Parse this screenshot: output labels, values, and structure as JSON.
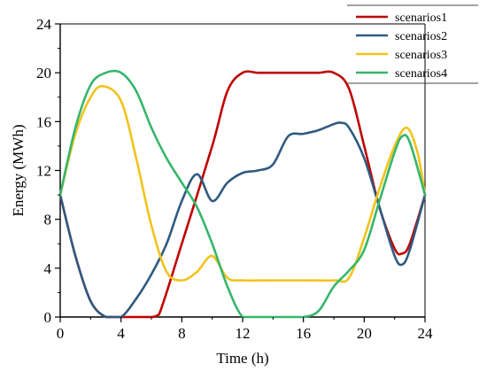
{
  "chart_data": {
    "type": "line",
    "title": "",
    "xlabel": "Time (h)",
    "ylabel": "Energy (MWh)",
    "xlim": [
      0,
      24
    ],
    "ylim": [
      0,
      24
    ],
    "xticks": [
      0,
      4,
      8,
      12,
      16,
      20,
      24
    ],
    "yticks": [
      0,
      4,
      8,
      12,
      16,
      20,
      24
    ],
    "grid": false,
    "legend_position": "top-right",
    "series": [
      {
        "name": "scenarios1",
        "color": "#c00000",
        "points": [
          [
            0,
            10
          ],
          [
            1,
            5
          ],
          [
            2,
            1.3
          ],
          [
            3,
            0
          ],
          [
            4,
            0
          ],
          [
            5,
            0
          ],
          [
            6,
            0
          ],
          [
            6.5,
            0.2
          ],
          [
            8,
            6
          ],
          [
            10,
            14
          ],
          [
            11,
            18.5
          ],
          [
            12,
            20
          ],
          [
            13,
            20
          ],
          [
            14,
            20
          ],
          [
            15,
            20
          ],
          [
            16,
            20
          ],
          [
            17,
            20
          ],
          [
            18,
            20
          ],
          [
            19,
            18.7
          ],
          [
            20,
            14
          ],
          [
            21,
            9
          ],
          [
            22,
            5.6
          ],
          [
            22.5,
            5.2
          ],
          [
            23,
            6
          ],
          [
            24,
            10
          ]
        ]
      },
      {
        "name": "scenarios2",
        "color": "#2f5a80",
        "points": [
          [
            0,
            10
          ],
          [
            1,
            5
          ],
          [
            2,
            1.3
          ],
          [
            3,
            0
          ],
          [
            4,
            0
          ],
          [
            5,
            1.5
          ],
          [
            6,
            3.5
          ],
          [
            7,
            6
          ],
          [
            8,
            9.5
          ],
          [
            9,
            11.7
          ],
          [
            10,
            9.5
          ],
          [
            11,
            11
          ],
          [
            12,
            11.8
          ],
          [
            13,
            12
          ],
          [
            14,
            12.5
          ],
          [
            15,
            14.8
          ],
          [
            16,
            15
          ],
          [
            17,
            15.3
          ],
          [
            18,
            15.8
          ],
          [
            18.5,
            15.9
          ],
          [
            19,
            15.5
          ],
          [
            20,
            13
          ],
          [
            21,
            9
          ],
          [
            22,
            5
          ],
          [
            22.5,
            4.3
          ],
          [
            23,
            5.5
          ],
          [
            24,
            10
          ]
        ]
      },
      {
        "name": "scenarios3",
        "color": "#f2c31b",
        "points": [
          [
            0,
            10
          ],
          [
            1,
            15
          ],
          [
            2,
            18
          ],
          [
            2.8,
            18.9
          ],
          [
            4,
            17.7
          ],
          [
            5,
            13
          ],
          [
            6,
            7.5
          ],
          [
            7,
            3.7
          ],
          [
            8,
            3
          ],
          [
            9,
            3.7
          ],
          [
            10,
            5
          ],
          [
            11,
            3.2
          ],
          [
            12,
            3
          ],
          [
            14,
            3
          ],
          [
            16,
            3
          ],
          [
            18,
            3
          ],
          [
            19,
            3.2
          ],
          [
            20,
            6.5
          ],
          [
            21,
            10.5
          ],
          [
            22,
            14
          ],
          [
            22.8,
            15.5
          ],
          [
            23.5,
            13.5
          ],
          [
            24,
            10
          ]
        ]
      },
      {
        "name": "scenarios4",
        "color": "#36b66a",
        "points": [
          [
            0,
            10
          ],
          [
            1,
            15.5
          ],
          [
            2,
            19
          ],
          [
            3,
            20
          ],
          [
            4,
            20
          ],
          [
            5,
            18.5
          ],
          [
            6,
            15.5
          ],
          [
            7,
            13
          ],
          [
            8,
            11
          ],
          [
            9,
            9
          ],
          [
            10,
            6
          ],
          [
            11,
            2.5
          ],
          [
            12,
            0
          ],
          [
            13,
            0
          ],
          [
            14,
            0
          ],
          [
            15,
            0
          ],
          [
            16,
            0
          ],
          [
            17,
            0.5
          ],
          [
            18,
            2.5
          ],
          [
            19,
            3.8
          ],
          [
            20,
            5.5
          ],
          [
            21,
            9.5
          ],
          [
            22,
            13.5
          ],
          [
            22.5,
            14.8
          ],
          [
            23,
            14.3
          ],
          [
            24,
            10
          ]
        ]
      }
    ]
  }
}
